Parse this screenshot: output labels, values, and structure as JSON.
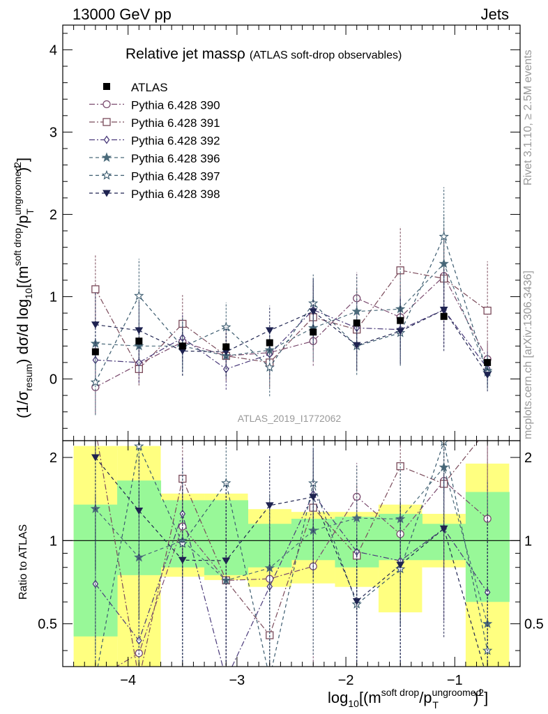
{
  "header": {
    "left": "13000 GeV pp",
    "right": "Jets"
  },
  "side": {
    "rivet": "Rivet 3.1.10, ≥ 2.5M events",
    "mcplots": "mcplots.cern.ch [arXiv:1306.3436]"
  },
  "chart_data": {
    "type": "line",
    "title": "Relative jet massρ",
    "subtitle": "(ATLAS soft-drop observables)",
    "watermark": "ATLAS_2019_I1772062",
    "ylabel": "(1/σresum) dσ/d log10[(msoft drop/pTungroomed)2]",
    "ylabel_parts": {
      "pre": "(1/σ",
      "sub1": "resum",
      "mid": ") dσ/d log",
      "sub2": "10",
      "post1": "[(m",
      "sup1": "soft drop",
      "slash": "/p",
      "sup2": "ungroomed",
      "sub3": "T",
      "post2": ")",
      "sup3": "2",
      "post3": "]"
    },
    "xlabel": "log10[(msoft drop/pTungroomed)2]",
    "xlabel_parts": {
      "pre": "log",
      "sub1": "10",
      "post1": "[(m",
      "sup1": "soft drop",
      "slash": "/p",
      "sup2": "ungroomed",
      "sub2": "T",
      "post2": ")",
      "sup3": "2",
      "post3": "]"
    },
    "ratio_ylabel": "Ratio to ATLAS",
    "xlim": [
      -4.6,
      -0.4
    ],
    "ylim": [
      -0.75,
      4.3
    ],
    "ratio_ylim": [
      0.35,
      2.3
    ],
    "xticks": [
      -4,
      -3,
      -2,
      -1
    ],
    "xtick_labels": [
      "−4",
      "−3",
      "−2",
      "−1"
    ],
    "yticks": [
      0,
      1,
      2,
      3,
      4
    ],
    "ytick_labels": [
      "0",
      "1",
      "2",
      "3",
      "4"
    ],
    "ratio_yticks": [
      0.5,
      1,
      2
    ],
    "ratio_ytick_labels": [
      "0.5",
      "1",
      "2"
    ],
    "bin_edges": [
      -4.5,
      -4.1,
      -3.7,
      -3.3,
      -2.9,
      -2.5,
      -2.1,
      -1.7,
      -1.3,
      -0.9,
      -0.5
    ],
    "x": [
      -4.3,
      -3.9,
      -3.5,
      -3.1,
      -2.7,
      -2.3,
      -1.9,
      -1.5,
      -1.1,
      -0.7
    ],
    "data": {
      "name": "ATLAS",
      "values": [
        0.33,
        0.46,
        0.4,
        0.39,
        0.44,
        0.57,
        0.68,
        0.71,
        0.76,
        0.2
      ],
      "band_stat": [
        [
          0.45,
          1.35
        ],
        [
          0.75,
          1.65
        ],
        [
          0.8,
          1.4
        ],
        [
          0.75,
          1.4
        ],
        [
          0.8,
          1.15
        ],
        [
          0.85,
          1.2
        ],
        [
          0.8,
          1.22
        ],
        [
          0.85,
          1.25
        ],
        [
          0.85,
          1.15
        ],
        [
          0.6,
          1.5
        ]
      ],
      "band_tot": [
        [
          0.3,
          2.2
        ],
        [
          0.3,
          2.2
        ],
        [
          0.74,
          1.48
        ],
        [
          0.72,
          1.48
        ],
        [
          0.68,
          1.3
        ],
        [
          0.7,
          1.27
        ],
        [
          0.68,
          1.27
        ],
        [
          0.55,
          1.35
        ],
        [
          0.8,
          1.25
        ],
        [
          0.35,
          1.9
        ]
      ]
    },
    "series": [
      {
        "name": "Pythia 6.428 390",
        "color": "#7a4a6e",
        "marker": "circle-open",
        "dash": "8,3,2,3",
        "values": [
          -0.1,
          0.18,
          0.45,
          0.28,
          0.32,
          0.46,
          0.98,
          0.75,
          1.25,
          0.24
        ],
        "err": [
          0.32,
          0.22,
          0.2,
          0.15,
          0.2,
          0.3,
          0.32,
          0.4,
          0.45,
          0.2
        ]
      },
      {
        "name": "Pythia 6.428 391",
        "color": "#7a4a5a",
        "marker": "square-open",
        "dash": "8,3,2,3",
        "values": [
          1.09,
          0.12,
          0.67,
          0.28,
          0.2,
          0.75,
          0.6,
          1.32,
          1.22,
          0.83
        ],
        "err": [
          0.42,
          0.2,
          0.35,
          0.3,
          0.3,
          0.4,
          0.5,
          0.53,
          0.62,
          0.6
        ]
      },
      {
        "name": "Pythia 6.428 392",
        "color": "#4a3a7a",
        "marker": "diamond-open",
        "dash": "8,3,2,3",
        "values": [
          0.23,
          0.2,
          0.5,
          0.12,
          0.3,
          0.84,
          0.62,
          0.6,
          0.84,
          0.13
        ],
        "err": [
          0.25,
          0.25,
          0.3,
          0.25,
          0.3,
          0.4,
          0.35,
          0.4,
          0.45,
          0.2
        ]
      },
      {
        "name": "Pythia 6.428 396",
        "color": "#4a6a7a",
        "marker": "star-filled",
        "dash": "5,4",
        "values": [
          0.43,
          0.4,
          0.4,
          0.28,
          0.35,
          0.62,
          0.82,
          0.85,
          1.4,
          0.1
        ],
        "err": [
          0.3,
          0.3,
          0.3,
          0.25,
          0.3,
          0.4,
          0.45,
          0.5,
          0.6,
          0.2
        ]
      },
      {
        "name": "Pythia 6.428 397",
        "color": "#3a5a6e",
        "marker": "star-open",
        "dash": "5,4",
        "values": [
          -0.04,
          1.01,
          0.39,
          0.63,
          0.14,
          0.92,
          0.4,
          0.56,
          1.73,
          0.08
        ],
        "err": [
          0.4,
          0.45,
          0.35,
          0.3,
          0.35,
          0.35,
          0.35,
          0.4,
          0.6,
          0.2
        ]
      },
      {
        "name": "Pythia 6.428 398",
        "color": "#1e2350",
        "marker": "triangle-down",
        "dash": "5,4",
        "values": [
          0.66,
          0.59,
          0.34,
          0.33,
          0.59,
          0.82,
          0.41,
          0.58,
          0.84,
          0.05
        ],
        "err": [
          0.4,
          0.35,
          0.3,
          0.3,
          0.3,
          0.4,
          0.3,
          0.4,
          0.5,
          0.2
        ]
      }
    ]
  }
}
